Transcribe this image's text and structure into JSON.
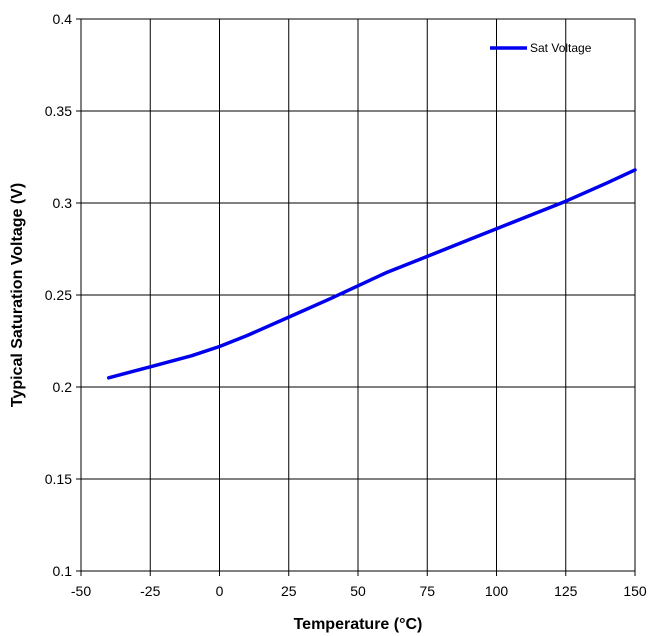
{
  "chart_data": {
    "type": "line",
    "title": "",
    "xlabel": "Temperature (°C)",
    "ylabel": "Typical Saturation Voltage (V)",
    "xlim": [
      -50,
      150
    ],
    "ylim": [
      0.1,
      0.4
    ],
    "xticks": [
      "-50",
      "-25",
      "0",
      "25",
      "50",
      "75",
      "100",
      "125",
      "150"
    ],
    "yticks": [
      "0.1",
      "0.15",
      "0.2",
      "0.25",
      "0.3",
      "0.35",
      "0.4"
    ],
    "grid": true,
    "legend_position": "top-right",
    "series": [
      {
        "name": "Sat Voltage",
        "color": "#0000ee",
        "x": [
          -40,
          -25,
          -10,
          0,
          10,
          25,
          40,
          50,
          60,
          75,
          90,
          100,
          110,
          125,
          140,
          150
        ],
        "y": [
          0.205,
          0.211,
          0.217,
          0.222,
          0.228,
          0.238,
          0.248,
          0.255,
          0.262,
          0.271,
          0.28,
          0.286,
          0.292,
          0.301,
          0.311,
          0.318
        ]
      }
    ]
  }
}
